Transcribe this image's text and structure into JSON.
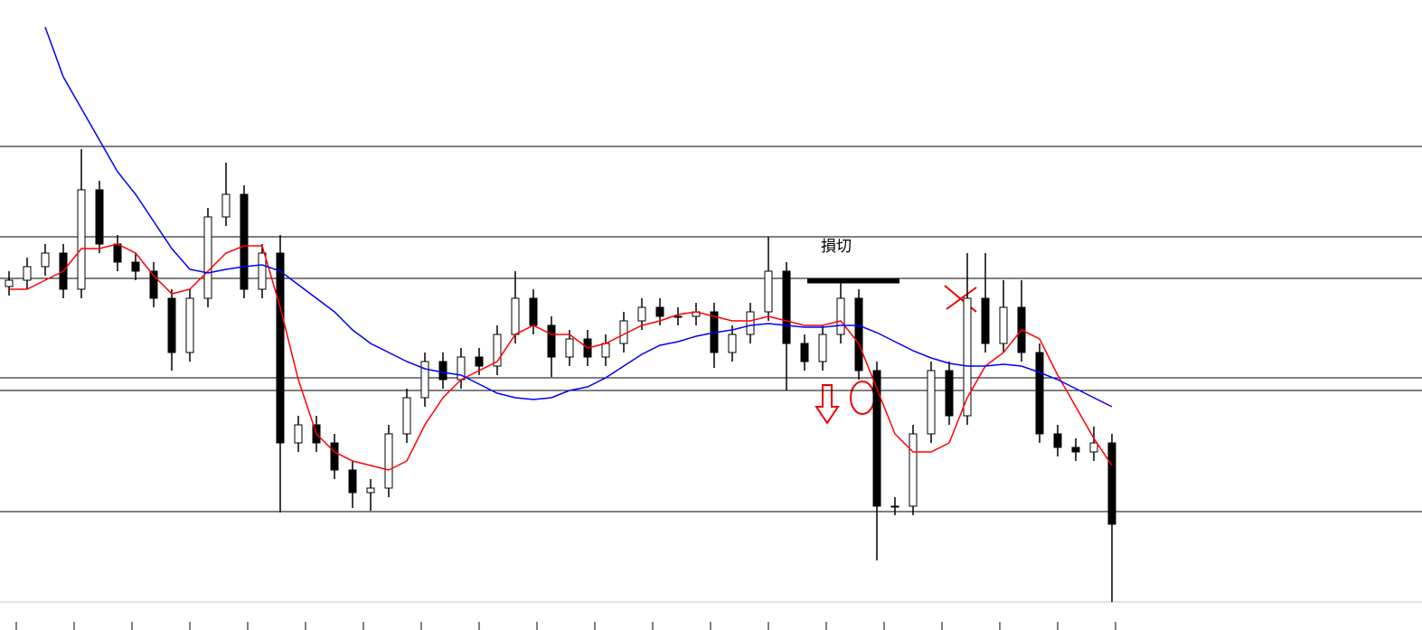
{
  "chart_data": {
    "type": "candlestick",
    "annotation": "損切",
    "ylim": [
      0,
      697
    ],
    "open": [
      380,
      387,
      402,
      417,
      377,
      487,
      427,
      407,
      397,
      367,
      307,
      367,
      457,
      482,
      377,
      417,
      207,
      227,
      207,
      177,
      152,
      157,
      217,
      257,
      297,
      277,
      302,
      292,
      327,
      367,
      337,
      302,
      322,
      302,
      317,
      342,
      357,
      347,
      347,
      352,
      307,
      327,
      352,
      397,
      317,
      297,
      327,
      367,
      287,
      137,
      137,
      217,
      287,
      237,
      367,
      317,
      357,
      307,
      217,
      202,
      197,
      207
    ],
    "high": [
      397,
      412,
      427,
      427,
      532,
      497,
      437,
      417,
      407,
      377,
      377,
      467,
      517,
      492,
      427,
      437,
      237,
      237,
      217,
      187,
      167,
      227,
      267,
      307,
      307,
      312,
      312,
      337,
      397,
      377,
      347,
      332,
      332,
      327,
      352,
      367,
      367,
      357,
      362,
      362,
      337,
      362,
      435,
      407,
      327,
      337,
      385,
      377,
      297,
      147,
      227,
      297,
      297,
      417,
      417,
      387,
      387,
      317,
      227,
      212,
      225,
      217
    ],
    "low": [
      370,
      377,
      392,
      367,
      367,
      417,
      397,
      387,
      357,
      287,
      297,
      357,
      447,
      367,
      367,
      130,
      197,
      197,
      167,
      135,
      132,
      147,
      207,
      247,
      267,
      267,
      282,
      282,
      317,
      327,
      280,
      292,
      292,
      292,
      307,
      332,
      337,
      337,
      337,
      290,
      297,
      317,
      342,
      265,
      287,
      287,
      317,
      277,
      77,
      127,
      127,
      207,
      227,
      227,
      307,
      307,
      297,
      207,
      192,
      187,
      187,
      31
    ],
    "close": [
      387,
      402,
      417,
      377,
      487,
      427,
      407,
      397,
      367,
      307,
      367,
      457,
      482,
      377,
      417,
      207,
      227,
      207,
      177,
      152,
      157,
      217,
      257,
      297,
      277,
      302,
      292,
      327,
      367,
      337,
      302,
      322,
      302,
      317,
      342,
      357,
      347,
      347,
      352,
      307,
      327,
      352,
      397,
      317,
      297,
      327,
      367,
      287,
      137,
      137,
      217,
      287,
      237,
      367,
      317,
      357,
      307,
      217,
      202,
      197,
      207,
      117
    ],
    "series": [
      {
        "color": "#ff0000",
        "values": [
          377,
          377,
          387,
          397,
          422,
          422,
          427,
          417,
          392,
          372,
          377,
          397,
          417,
          425,
          425,
          357,
          277,
          217,
          197,
          187,
          182,
          177,
          187,
          227,
          257,
          277,
          287,
          297,
          327,
          337,
          327,
          327,
          312,
          317,
          327,
          337,
          342,
          349,
          352,
          347,
          342,
          342,
          347,
          342,
          337,
          337,
          342,
          317,
          267,
          217,
          197,
          197,
          207,
          257,
          292,
          307,
          332,
          322,
          282,
          247,
          212,
          182
        ]
      },
      {
        "color": "#0000ff",
        "values": [
          null,
          null,
          667,
          612,
          577,
          542,
          507,
          482,
          452,
          422,
          399,
          395,
          399,
          402,
          404,
          397,
          382,
          367,
          352,
          332,
          317,
          307,
          297,
          289,
          285,
          282,
          272,
          262,
          257,
          255,
          257,
          265,
          269,
          279,
          292,
          305,
          315,
          319,
          325,
          329,
          332,
          337,
          339,
          337,
          335,
          335,
          337,
          337,
          329,
          319,
          309,
          301,
          295,
          292,
          292,
          294,
          292,
          285,
          277,
          267,
          257,
          247
        ]
      }
    ],
    "levels": [
      535,
      435,
      389,
      279,
      265,
      131
    ],
    "level_color": "#000000"
  }
}
